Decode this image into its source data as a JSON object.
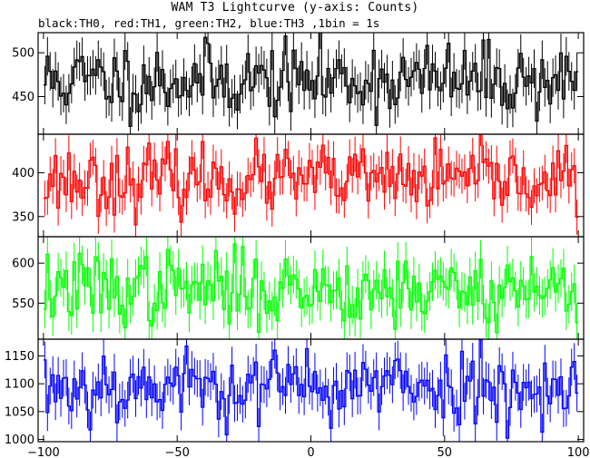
{
  "title": "WAM T3 Lightcurve (y-axis: Counts)",
  "subtitle": "black:TH0, red:TH1, green:TH2, blue:TH3 ,1bin = 1s",
  "chart_data": {
    "type": "line",
    "style": "step with vertical error bars",
    "xlim": [
      -102,
      102
    ],
    "xticks": [
      -100,
      -50,
      0,
      50,
      100
    ],
    "xtick_labels": [
      "−100",
      "−50",
      "0",
      "50",
      "100"
    ],
    "panels": [
      {
        "name": "TH0",
        "color": "#000000",
        "ylim": [
          407,
          523
        ],
        "yticks": [
          450,
          500
        ],
        "mean": 469,
        "sigma": 21,
        "errbar": 22,
        "seed": 11
      },
      {
        "name": "TH1",
        "color": "#ff0000",
        "ylim": [
          327,
          444
        ],
        "yticks": [
          350,
          400
        ],
        "mean": 392,
        "sigma": 19,
        "errbar": 20,
        "seed": 23
      },
      {
        "name": "TH2",
        "color": "#00ff00",
        "ylim": [
          505,
          633
        ],
        "yticks": [
          550,
          600
        ],
        "mean": 568,
        "sigma": 23,
        "errbar": 24,
        "seed": 37
      },
      {
        "name": "TH3",
        "color": "#0000ff",
        "ylim": [
          996,
          1180
        ],
        "yticks": [
          1000,
          1050,
          1100,
          1150
        ],
        "mean": 1096,
        "sigma": 33,
        "errbar": 33,
        "seed": 53
      }
    ]
  }
}
